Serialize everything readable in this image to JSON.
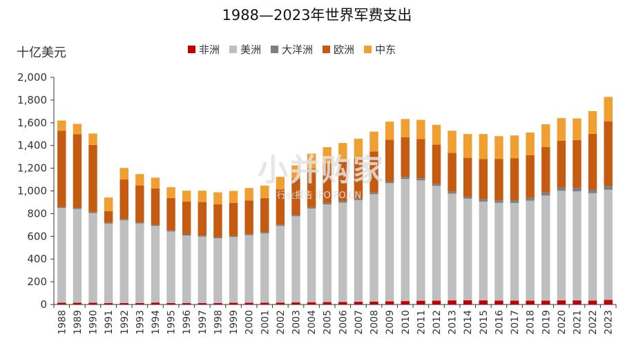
{
  "title": "1988—2023年世界军费支出",
  "unit_label": "十亿美元",
  "watermark": {
    "main": "小并购家",
    "sub": "行业报告 IPOIPO.CN"
  },
  "chart_data": {
    "type": "bar",
    "stacked": true,
    "title": "1988—2023年世界军费支出",
    "ylabel": "十亿美元",
    "ylim": [
      0,
      2000
    ],
    "yticks": [
      0,
      200,
      400,
      600,
      800,
      1000,
      1200,
      1400,
      1600,
      1800,
      2000
    ],
    "ytick_labels": [
      "0",
      "200",
      "400",
      "600",
      "800",
      "1,000",
      "1,200",
      "1,400",
      "1,600",
      "1,800",
      "2,000"
    ],
    "grid": false,
    "legend_position": "top",
    "categories": [
      "1988",
      "1989",
      "1990",
      "1991",
      "1992",
      "1993",
      "1994",
      "1995",
      "1996",
      "1997",
      "1998",
      "1999",
      "2000",
      "2001",
      "2002",
      "2003",
      "2004",
      "2005",
      "2006",
      "2007",
      "2008",
      "2009",
      "2010",
      "2011",
      "2012",
      "2013",
      "2014",
      "2015",
      "2016",
      "2017",
      "2018",
      "2019",
      "2020",
      "2021",
      "2022",
      "2023"
    ],
    "series": [
      {
        "name": "非洲",
        "color": "#c00000",
        "values": [
          15,
          15,
          15,
          12,
          12,
          13,
          17,
          13,
          12,
          12,
          13,
          15,
          15,
          16,
          17,
          18,
          20,
          21,
          22,
          24,
          26,
          28,
          30,
          33,
          34,
          36,
          37,
          36,
          35,
          34,
          34,
          34,
          36,
          36,
          35,
          40
        ]
      },
      {
        "name": "美洲",
        "color": "#bfbfbf",
        "values": [
          835,
          825,
          790,
          700,
          730,
          700,
          675,
          630,
          595,
          585,
          570,
          580,
          595,
          610,
          675,
          760,
          825,
          860,
          875,
          895,
          945,
          1040,
          1075,
          1060,
          1010,
          940,
          895,
          870,
          860,
          860,
          880,
          925,
          965,
          960,
          945,
          970
        ]
      },
      {
        "name": "大洋洲",
        "color": "#7f7f7f",
        "values": [
          10,
          10,
          10,
          10,
          10,
          10,
          10,
          10,
          10,
          10,
          10,
          10,
          11,
          11,
          12,
          12,
          13,
          14,
          15,
          15,
          16,
          17,
          18,
          18,
          18,
          19,
          19,
          20,
          22,
          24,
          26,
          28,
          30,
          32,
          32,
          33
        ]
      },
      {
        "name": "欧洲",
        "color": "#c55a11",
        "values": [
          670,
          650,
          590,
          100,
          350,
          325,
          320,
          285,
          290,
          295,
          290,
          290,
          295,
          300,
          310,
          320,
          340,
          345,
          350,
          355,
          360,
          365,
          350,
          345,
          345,
          340,
          340,
          355,
          365,
          370,
          375,
          400,
          410,
          420,
          490,
          570
        ]
      },
      {
        "name": "中东",
        "color": "#f0a030",
        "values": [
          90,
          90,
          100,
          120,
          100,
          100,
          95,
          95,
          95,
          100,
          105,
          105,
          110,
          110,
          110,
          115,
          130,
          145,
          160,
          170,
          175,
          160,
          160,
          170,
          175,
          195,
          210,
          220,
          200,
          200,
          200,
          200,
          200,
          190,
          200,
          215
        ]
      }
    ]
  }
}
